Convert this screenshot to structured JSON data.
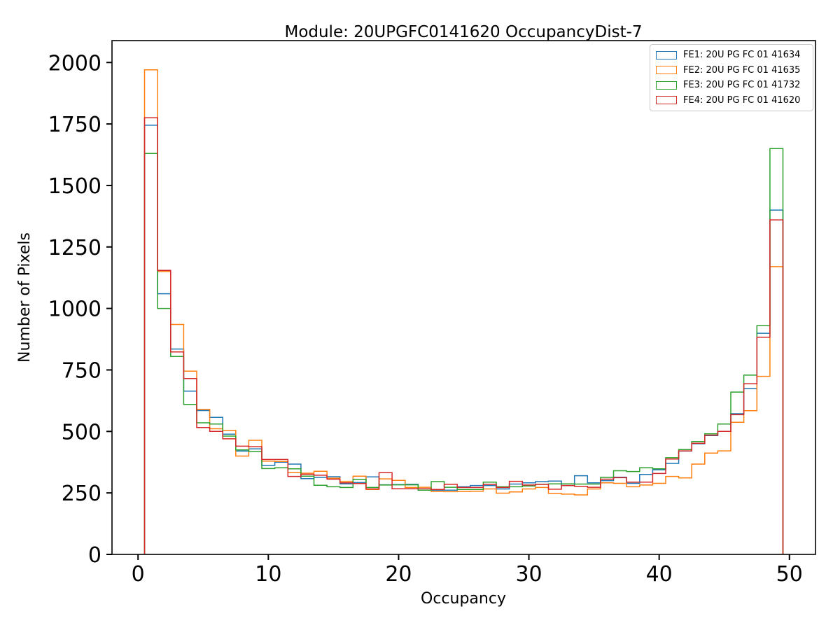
{
  "chart_data": {
    "type": "line",
    "style": "step-histogram-outline",
    "title": "Module: 20UPGFC0141620 OccupancyDist-7",
    "xlabel": "Occupancy",
    "ylabel": "Number of Pixels",
    "xlim": [
      -2,
      52
    ],
    "ylim": [
      0,
      2089
    ],
    "xticks": [
      0,
      10,
      20,
      30,
      40,
      50
    ],
    "yticks": [
      0,
      250,
      500,
      750,
      1000,
      1250,
      1500,
      1750,
      2000
    ],
    "grid": false,
    "legend_position": "upper right",
    "bin_start": 0.5,
    "bin_width": 1,
    "series": [
      {
        "name": "FE1: 20U PG FC 01 41634",
        "color": "#1f77b4",
        "values": [
          1745,
          1060,
          835,
          664,
          585,
          557,
          489,
          420,
          429,
          362,
          375,
          367,
          308,
          313,
          316,
          287,
          292,
          315,
          283,
          284,
          285,
          261,
          261,
          261,
          275,
          280,
          280,
          266,
          286,
          291,
          296,
          298,
          280,
          320,
          291,
          300,
          314,
          289,
          325,
          344,
          370,
          420,
          450,
          483,
          500,
          572,
          674,
          899,
          1400
        ]
      },
      {
        "name": "FE2: 20U PG FC 01 41635",
        "color": "#ff7f0e",
        "values": [
          1970,
          1150,
          935,
          745,
          590,
          511,
          504,
          400,
          464,
          379,
          378,
          333,
          330,
          338,
          310,
          297,
          318,
          264,
          307,
          301,
          272,
          273,
          256,
          255,
          256,
          257,
          266,
          249,
          254,
          266,
          272,
          248,
          245,
          242,
          266,
          291,
          289,
          275,
          282,
          289,
          317,
          311,
          367,
          412,
          421,
          537,
          584,
          724,
          1170
        ]
      },
      {
        "name": "FE3: 20U PG FC 01 41732",
        "color": "#2ca02c",
        "values": [
          1630,
          1000,
          805,
          610,
          535,
          530,
          481,
          425,
          418,
          349,
          352,
          348,
          318,
          281,
          275,
          272,
          305,
          272,
          282,
          283,
          283,
          261,
          296,
          273,
          264,
          264,
          294,
          275,
          275,
          278,
          285,
          287,
          287,
          286,
          286,
          313,
          340,
          337,
          352,
          348,
          393,
          426,
          459,
          490,
          530,
          660,
          729,
          930,
          1650
        ]
      },
      {
        "name": "FE4: 20U PG FC 01 41620",
        "color": "#d62728",
        "values": [
          1775,
          1155,
          823,
          715,
          516,
          500,
          470,
          440,
          438,
          386,
          386,
          317,
          326,
          322,
          306,
          291,
          288,
          266,
          332,
          267,
          267,
          267,
          264,
          285,
          272,
          272,
          285,
          272,
          297,
          282,
          285,
          265,
          280,
          277,
          273,
          306,
          312,
          294,
          294,
          329,
          388,
          421,
          452,
          485,
          500,
          568,
          694,
          883,
          1360
        ]
      }
    ]
  }
}
